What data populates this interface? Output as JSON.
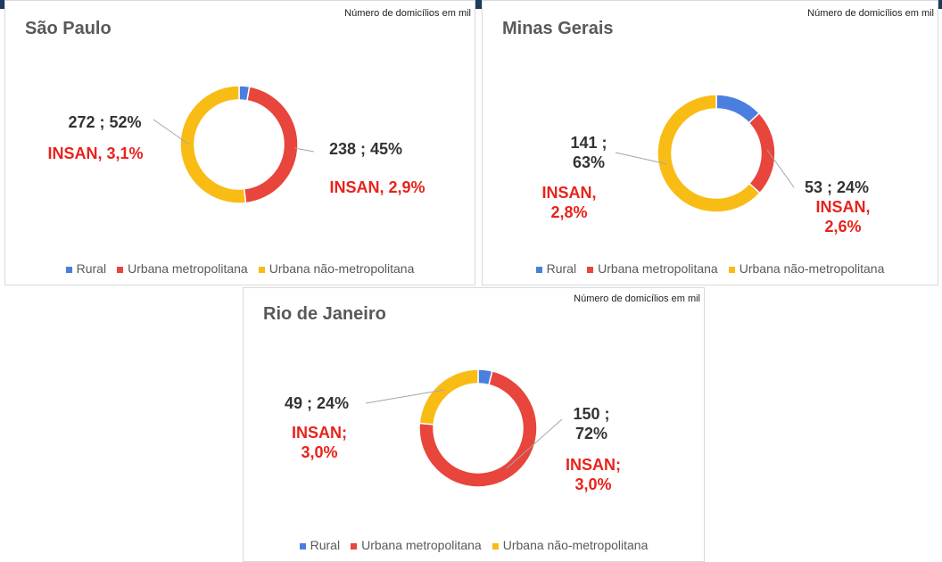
{
  "chart_data": [
    {
      "type": "pie",
      "donut": true,
      "title": "São Paulo",
      "subtitle": "Número de domicílios em mil",
      "categories": [
        "Rural",
        "Urbana metropolitana",
        "Urbana não-metropolitana"
      ],
      "colors": [
        "#4a7fe0",
        "#e8453c",
        "#f9bc15"
      ],
      "values": [
        15,
        238,
        272
      ],
      "value_labels": [
        null,
        "238 ; 45%",
        "272 ; 52%"
      ],
      "annotations": [
        null,
        "INSAN, 2,9%",
        "INSAN, 3,1%"
      ],
      "legend": "bottom"
    },
    {
      "type": "pie",
      "donut": true,
      "title": "Minas Gerais",
      "subtitle": "Número de domicílios em mil",
      "categories": [
        "Rural",
        "Urbana metropolitana",
        "Urbana não-metropolitana"
      ],
      "colors": [
        "#4a7fe0",
        "#e8453c",
        "#f9bc15"
      ],
      "values": [
        29,
        53,
        141
      ],
      "value_labels": [
        null,
        "53 ; 24%",
        "141 ; 63%"
      ],
      "annotations": [
        null,
        "INSAN, 2,6%",
        "INSAN, 2,8%"
      ],
      "legend": "bottom"
    },
    {
      "type": "pie",
      "donut": true,
      "title": "Rio de Janeiro",
      "subtitle": "Número de domicílios em mil",
      "categories": [
        "Rural",
        "Urbana metropolitana",
        "Urbana não-metropolitana"
      ],
      "colors": [
        "#4a7fe0",
        "#e8453c",
        "#f9bc15"
      ],
      "values": [
        8,
        150,
        49
      ],
      "value_labels": [
        null,
        "150 ; 72%",
        "49 ; 24%"
      ],
      "annotations": [
        null,
        "INSAN; 3,0%",
        "INSAN; 3,0%"
      ],
      "legend": "bottom"
    }
  ]
}
